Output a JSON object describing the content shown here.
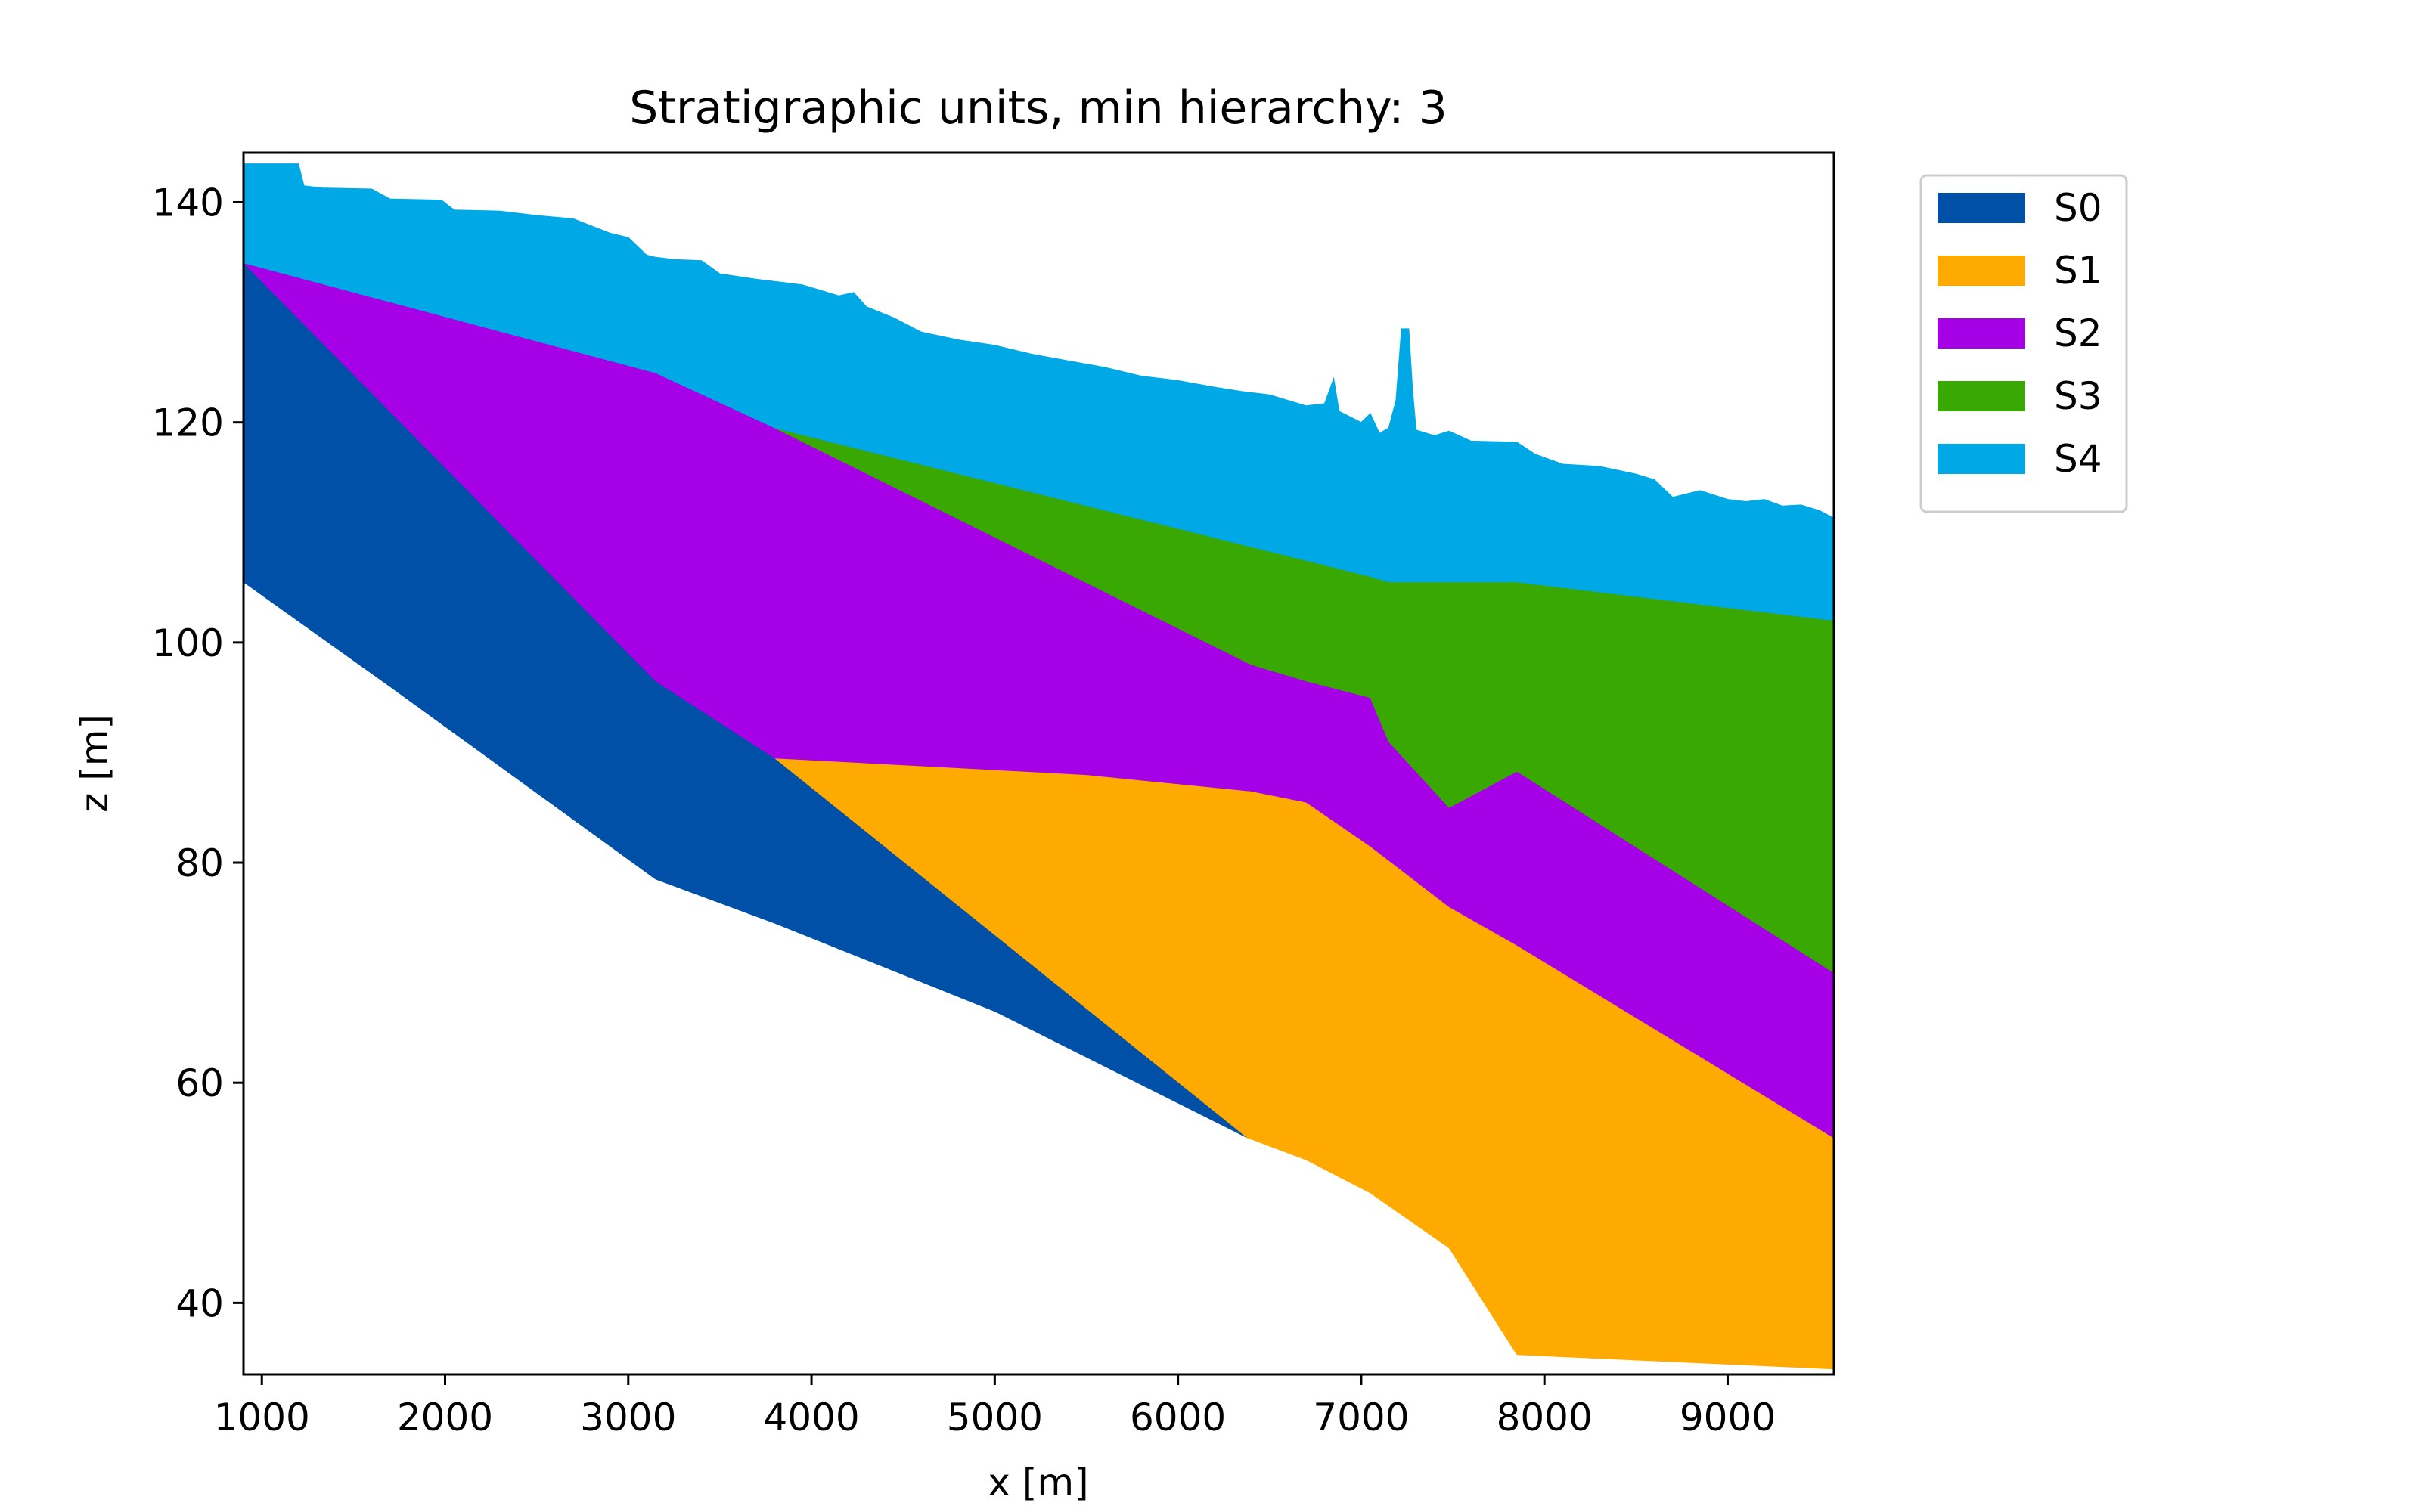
{
  "chart_data": {
    "type": "area",
    "title": "Stratigraphic units, min hierarchy: 3",
    "xlabel": "x [m]",
    "ylabel": "z [m]",
    "xlim": [
      900,
      9580
    ],
    "ylim": [
      33.5,
      144.5
    ],
    "xticks": [
      1000,
      2000,
      3000,
      4000,
      5000,
      6000,
      7000,
      8000,
      9000
    ],
    "yticks": [
      40,
      60,
      80,
      100,
      120,
      140
    ],
    "grid": false,
    "legend_placement": "outside top-right",
    "series": [
      {
        "name": "S0",
        "color": "#0050a8",
        "polygon": [
          [
            900,
            105.5
          ],
          [
            1700,
            96
          ],
          [
            3150,
            78.5
          ],
          [
            3800,
            74.5
          ],
          [
            5000,
            66.5
          ],
          [
            6380,
            55
          ],
          [
            3800,
            89.5
          ],
          [
            3150,
            96.5
          ],
          [
            900,
            134.5
          ]
        ]
      },
      {
        "name": "S1",
        "color": "#ffaa00",
        "polygon": [
          [
            3800,
            89.5
          ],
          [
            5500,
            88
          ],
          [
            6400,
            86.5
          ],
          [
            6700,
            85.5
          ],
          [
            7050,
            81.5
          ],
          [
            7480,
            76
          ],
          [
            7850,
            72.5
          ],
          [
            9580,
            55
          ],
          [
            9580,
            34
          ],
          [
            7850,
            35.3
          ],
          [
            7480,
            45
          ],
          [
            7050,
            50
          ],
          [
            6700,
            53
          ],
          [
            6380,
            55
          ]
        ]
      },
      {
        "name": "S2",
        "color": "#a600e6",
        "polygon": [
          [
            900,
            134.5
          ],
          [
            3150,
            124.5
          ],
          [
            3800,
            119.5
          ],
          [
            6400,
            98
          ],
          [
            6700,
            96.5
          ],
          [
            7050,
            95
          ],
          [
            7150,
            91
          ],
          [
            7480,
            85
          ],
          [
            7850,
            88.3
          ],
          [
            9580,
            70
          ],
          [
            9580,
            55
          ],
          [
            7850,
            72.5
          ],
          [
            7480,
            76
          ],
          [
            7050,
            81.5
          ],
          [
            6700,
            85.5
          ],
          [
            6400,
            86.5
          ],
          [
            5500,
            88
          ],
          [
            3800,
            89.5
          ],
          [
            3150,
            96.5
          ]
        ]
      },
      {
        "name": "S3",
        "color": "#3aa803",
        "polygon": [
          [
            3800,
            119.5
          ],
          [
            7050,
            106
          ],
          [
            7150,
            105.5
          ],
          [
            7850,
            105.5
          ],
          [
            9580,
            102
          ],
          [
            9580,
            70
          ],
          [
            7850,
            88.3
          ],
          [
            7480,
            85
          ],
          [
            7150,
            91
          ],
          [
            7050,
            95
          ],
          [
            6700,
            96.5
          ],
          [
            6400,
            98
          ]
        ]
      },
      {
        "name": "S4",
        "color": "#00a8e6",
        "bottom": [
          [
            900,
            134.5
          ],
          [
            3150,
            124.5
          ],
          [
            3800,
            119.5
          ],
          [
            7050,
            106
          ],
          [
            7150,
            105.5
          ],
          [
            7850,
            105.5
          ],
          [
            9580,
            102
          ]
        ],
        "top": [
          [
            900,
            143.5
          ],
          [
            1200,
            143.5
          ],
          [
            1230,
            141.5
          ],
          [
            1330,
            141.3
          ],
          [
            1600,
            141.2
          ],
          [
            1700,
            140.3
          ],
          [
            1980,
            140.2
          ],
          [
            2050,
            139.3
          ],
          [
            2300,
            139.2
          ],
          [
            2500,
            138.8
          ],
          [
            2700,
            138.5
          ],
          [
            2900,
            137.2
          ],
          [
            3000,
            136.8
          ],
          [
            3100,
            135.2
          ],
          [
            3150,
            135
          ],
          [
            3250,
            134.8
          ],
          [
            3400,
            134.7
          ],
          [
            3500,
            133.5
          ],
          [
            3700,
            133
          ],
          [
            3950,
            132.5
          ],
          [
            4150,
            131.5
          ],
          [
            4230,
            131.8
          ],
          [
            4300,
            130.5
          ],
          [
            4450,
            129.5
          ],
          [
            4600,
            128.2
          ],
          [
            4800,
            127.5
          ],
          [
            5000,
            127
          ],
          [
            5200,
            126.2
          ],
          [
            5400,
            125.6
          ],
          [
            5600,
            125
          ],
          [
            5800,
            124.2
          ],
          [
            6000,
            123.8
          ],
          [
            6200,
            123.2
          ],
          [
            6350,
            122.8
          ],
          [
            6500,
            122.5
          ],
          [
            6700,
            121.5
          ],
          [
            6800,
            121.7
          ],
          [
            6850,
            124
          ],
          [
            6880,
            121
          ],
          [
            7000,
            120
          ],
          [
            7050,
            120.8
          ],
          [
            7100,
            119
          ],
          [
            7150,
            119.5
          ],
          [
            7190,
            122
          ],
          [
            7220,
            128.5
          ],
          [
            7260,
            128.5
          ],
          [
            7280,
            123
          ],
          [
            7300,
            119.3
          ],
          [
            7400,
            118.8
          ],
          [
            7480,
            119.2
          ],
          [
            7600,
            118.3
          ],
          [
            7850,
            118.2
          ],
          [
            7950,
            117.1
          ],
          [
            8100,
            116.2
          ],
          [
            8300,
            116
          ],
          [
            8500,
            115.3
          ],
          [
            8600,
            114.8
          ],
          [
            8700,
            113.2
          ],
          [
            8850,
            113.8
          ],
          [
            9000,
            113
          ],
          [
            9100,
            112.8
          ],
          [
            9200,
            113
          ],
          [
            9300,
            112.4
          ],
          [
            9400,
            112.5
          ],
          [
            9500,
            112
          ],
          [
            9580,
            111.3
          ]
        ]
      }
    ]
  }
}
